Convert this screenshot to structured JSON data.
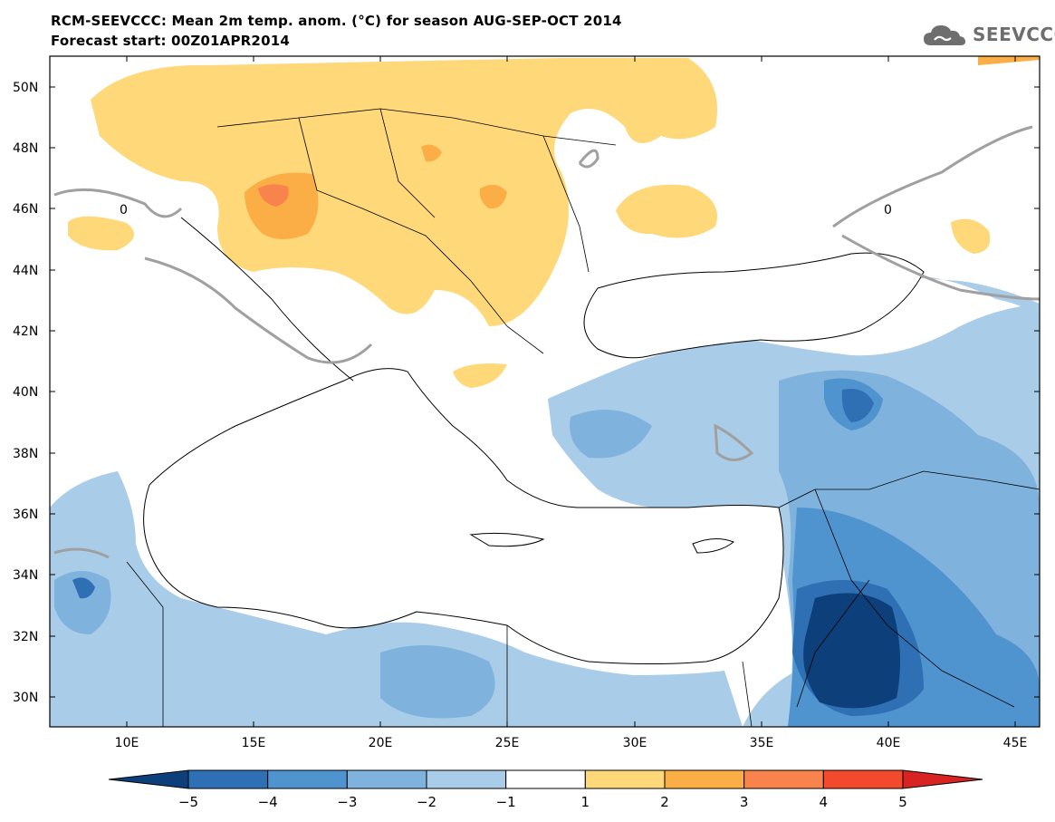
{
  "header": {
    "line1": "RCM-SEEVCCC: Mean 2m temp. anom. (°C) for season AUG-SEP-OCT 2014",
    "line2": "Forecast start: 00Z01APR2014"
  },
  "logo": {
    "text": "SEEVCCC",
    "icon": "cloud-logo-icon"
  },
  "map": {
    "lat_range": [
      29,
      51
    ],
    "lon_range": [
      7,
      46
    ],
    "lat_ticks": [
      "50N",
      "48N",
      "46N",
      "44N",
      "42N",
      "40N",
      "38N",
      "36N",
      "34N",
      "32N",
      "30N"
    ],
    "lon_ticks": [
      "10E",
      "15E",
      "20E",
      "25E",
      "30E",
      "35E",
      "40E",
      "45E"
    ],
    "contour_label": "0"
  },
  "colorbar": {
    "levels": [
      "−5",
      "−4",
      "−3",
      "−2",
      "−1",
      "1",
      "2",
      "3",
      "4",
      "5"
    ],
    "colors": [
      "#0d3f7a",
      "#2f6fb3",
      "#4f93cf",
      "#7fb2dc",
      "#a9cde9",
      "#ffffff",
      "#fed879",
      "#fcae46",
      "#f8834c",
      "#f3492c",
      "#d92222"
    ]
  }
}
